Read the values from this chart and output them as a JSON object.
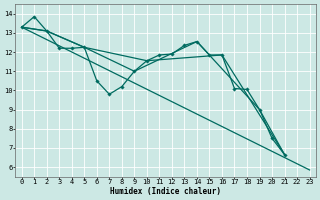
{
  "xlabel": "Humidex (Indice chaleur)",
  "background_color": "#cce8e4",
  "grid_color": "#ffffff",
  "line_color": "#006b60",
  "xlim": [
    -0.5,
    23.5
  ],
  "ylim": [
    5.5,
    14.5
  ],
  "xticks": [
    0,
    1,
    2,
    3,
    4,
    5,
    6,
    7,
    8,
    9,
    10,
    11,
    12,
    13,
    14,
    15,
    16,
    17,
    18,
    19,
    20,
    21,
    22,
    23
  ],
  "yticks": [
    6,
    7,
    8,
    9,
    10,
    11,
    12,
    13,
    14
  ],
  "series": [
    {
      "x": [
        0,
        1,
        2,
        3,
        4,
        5,
        6,
        7,
        8,
        9,
        10,
        11,
        12,
        13,
        14,
        15,
        16,
        17,
        18,
        19,
        20,
        21
      ],
      "y": [
        13.3,
        13.85,
        13.1,
        12.2,
        12.2,
        12.25,
        10.5,
        9.8,
        10.2,
        11.0,
        11.55,
        11.85,
        11.9,
        12.35,
        12.55,
        11.85,
        11.85,
        10.1,
        10.05,
        9.0,
        7.5,
        6.65
      ],
      "has_markers": true,
      "markersize": 1.8,
      "linewidth": 0.9
    },
    {
      "x": [
        0,
        23
      ],
      "y": [
        13.3,
        5.85
      ],
      "has_markers": false,
      "markersize": 0,
      "linewidth": 0.9
    },
    {
      "x": [
        0,
        2,
        5,
        9,
        14,
        19,
        21
      ],
      "y": [
        13.3,
        13.1,
        12.25,
        11.0,
        12.55,
        9.0,
        6.65
      ],
      "has_markers": false,
      "markersize": 0,
      "linewidth": 0.9
    },
    {
      "x": [
        0,
        2,
        5,
        10,
        16,
        21
      ],
      "y": [
        13.3,
        13.1,
        12.25,
        11.55,
        11.85,
        6.65
      ],
      "has_markers": false,
      "markersize": 0,
      "linewidth": 0.9
    }
  ]
}
